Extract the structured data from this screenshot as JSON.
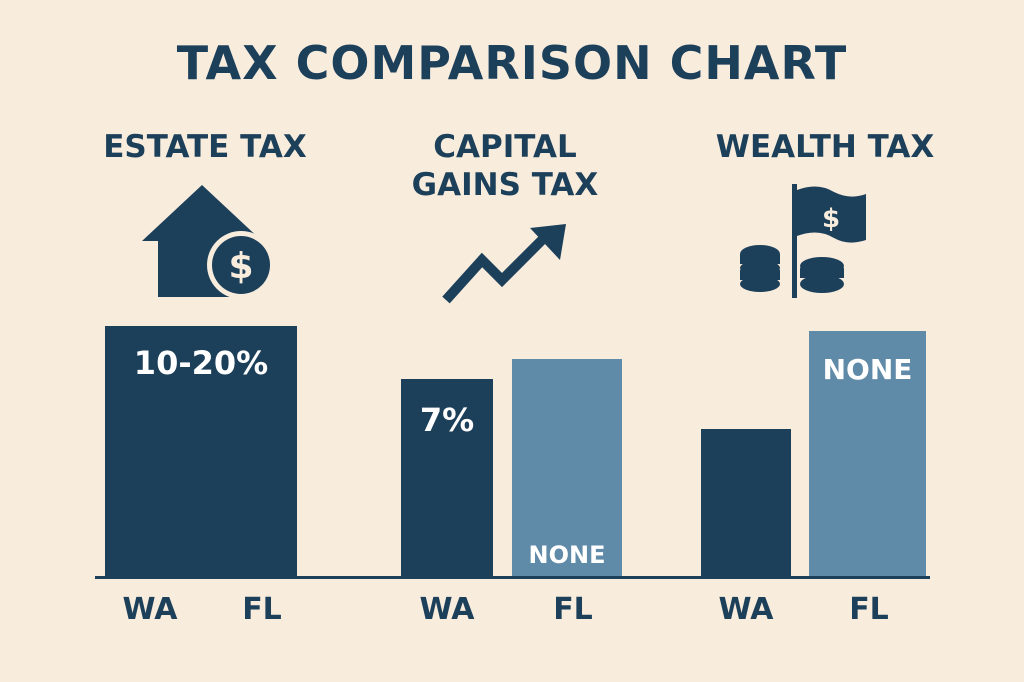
{
  "chart_data": {
    "type": "bar",
    "title": "TAX COMPARISON CHART",
    "colors": {
      "background": "#f8ecdd",
      "WA": "#1c3f5a",
      "FL": "#5f8aa8",
      "text": "#1c3f5a"
    },
    "groups": [
      {
        "label": "ESTATE TAX",
        "icon": "house-dollar-icon",
        "merged_bar": true,
        "x_labels": [
          "WA",
          "FL"
        ],
        "bars": [
          {
            "state": "WA/FL",
            "level": 100,
            "label": "10-20%"
          }
        ]
      },
      {
        "label": "CAPITAL GAINS TAX",
        "icon": "trend-up-arrow-icon",
        "x_labels": [
          "WA",
          "FL"
        ],
        "bars": [
          {
            "state": "WA",
            "level": 79,
            "label": "7%"
          },
          {
            "state": "FL",
            "level": 87,
            "label": "NONE"
          }
        ]
      },
      {
        "label": "WEALTH TAX",
        "icon": "coins-flag-icon",
        "x_labels": [
          "WA",
          "FL"
        ],
        "bars": [
          {
            "state": "WA",
            "level": 59,
            "label": ""
          },
          {
            "state": "FL",
            "level": 98,
            "label": "NONE"
          }
        ]
      }
    ]
  }
}
